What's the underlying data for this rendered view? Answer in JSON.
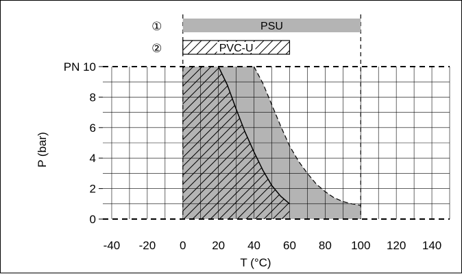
{
  "chart_data": {
    "type": "area",
    "xlabel": "T (°C)",
    "ylabel": "P (bar)",
    "xlim": [
      -45,
      150
    ],
    "ylim": [
      0,
      10
    ],
    "x_ticks": [
      {
        "value": -40,
        "label": "-40"
      },
      {
        "value": -20,
        "label": "-20"
      },
      {
        "value": 0,
        "label": "0"
      },
      {
        "value": 20,
        "label": "20"
      },
      {
        "value": 40,
        "label": "40"
      },
      {
        "value": 60,
        "label": "60"
      },
      {
        "value": 80,
        "label": "80"
      },
      {
        "value": 100,
        "label": "100"
      },
      {
        "value": 120,
        "label": "120"
      },
      {
        "value": 140,
        "label": "140"
      }
    ],
    "y_ticks": [
      {
        "value": 0,
        "label": "0"
      },
      {
        "value": 2,
        "label": "2"
      },
      {
        "value": 4,
        "label": "4"
      },
      {
        "value": 6,
        "label": "6"
      },
      {
        "value": 8,
        "label": "8"
      },
      {
        "value": 10,
        "label": "PN 10"
      }
    ],
    "grid": true,
    "bands": [
      {
        "marker": "①",
        "name": "PSU",
        "x_range": [
          0,
          100
        ],
        "style": "gray"
      },
      {
        "marker": "②",
        "name": "PVC-U",
        "x_range": [
          0,
          60
        ],
        "style": "hatched"
      }
    ],
    "series": [
      {
        "name": "PSU",
        "style": "gray",
        "x": [
          0,
          40,
          45,
          50,
          55,
          60,
          65,
          70,
          75,
          80,
          85,
          90,
          95,
          100,
          100,
          0
        ],
        "y": [
          10,
          10,
          8.9,
          7.5,
          6.1,
          4.8,
          3.8,
          3.0,
          2.3,
          1.8,
          1.4,
          1.15,
          1.0,
          0.9,
          0,
          0
        ]
      },
      {
        "name": "PVC-U",
        "style": "hatched",
        "x": [
          0,
          20,
          25,
          30,
          35,
          40,
          45,
          50,
          55,
          60,
          60,
          0
        ],
        "y": [
          10,
          10,
          8.8,
          7.2,
          5.7,
          4.4,
          3.2,
          2.2,
          1.5,
          1.0,
          0,
          0
        ]
      }
    ]
  }
}
